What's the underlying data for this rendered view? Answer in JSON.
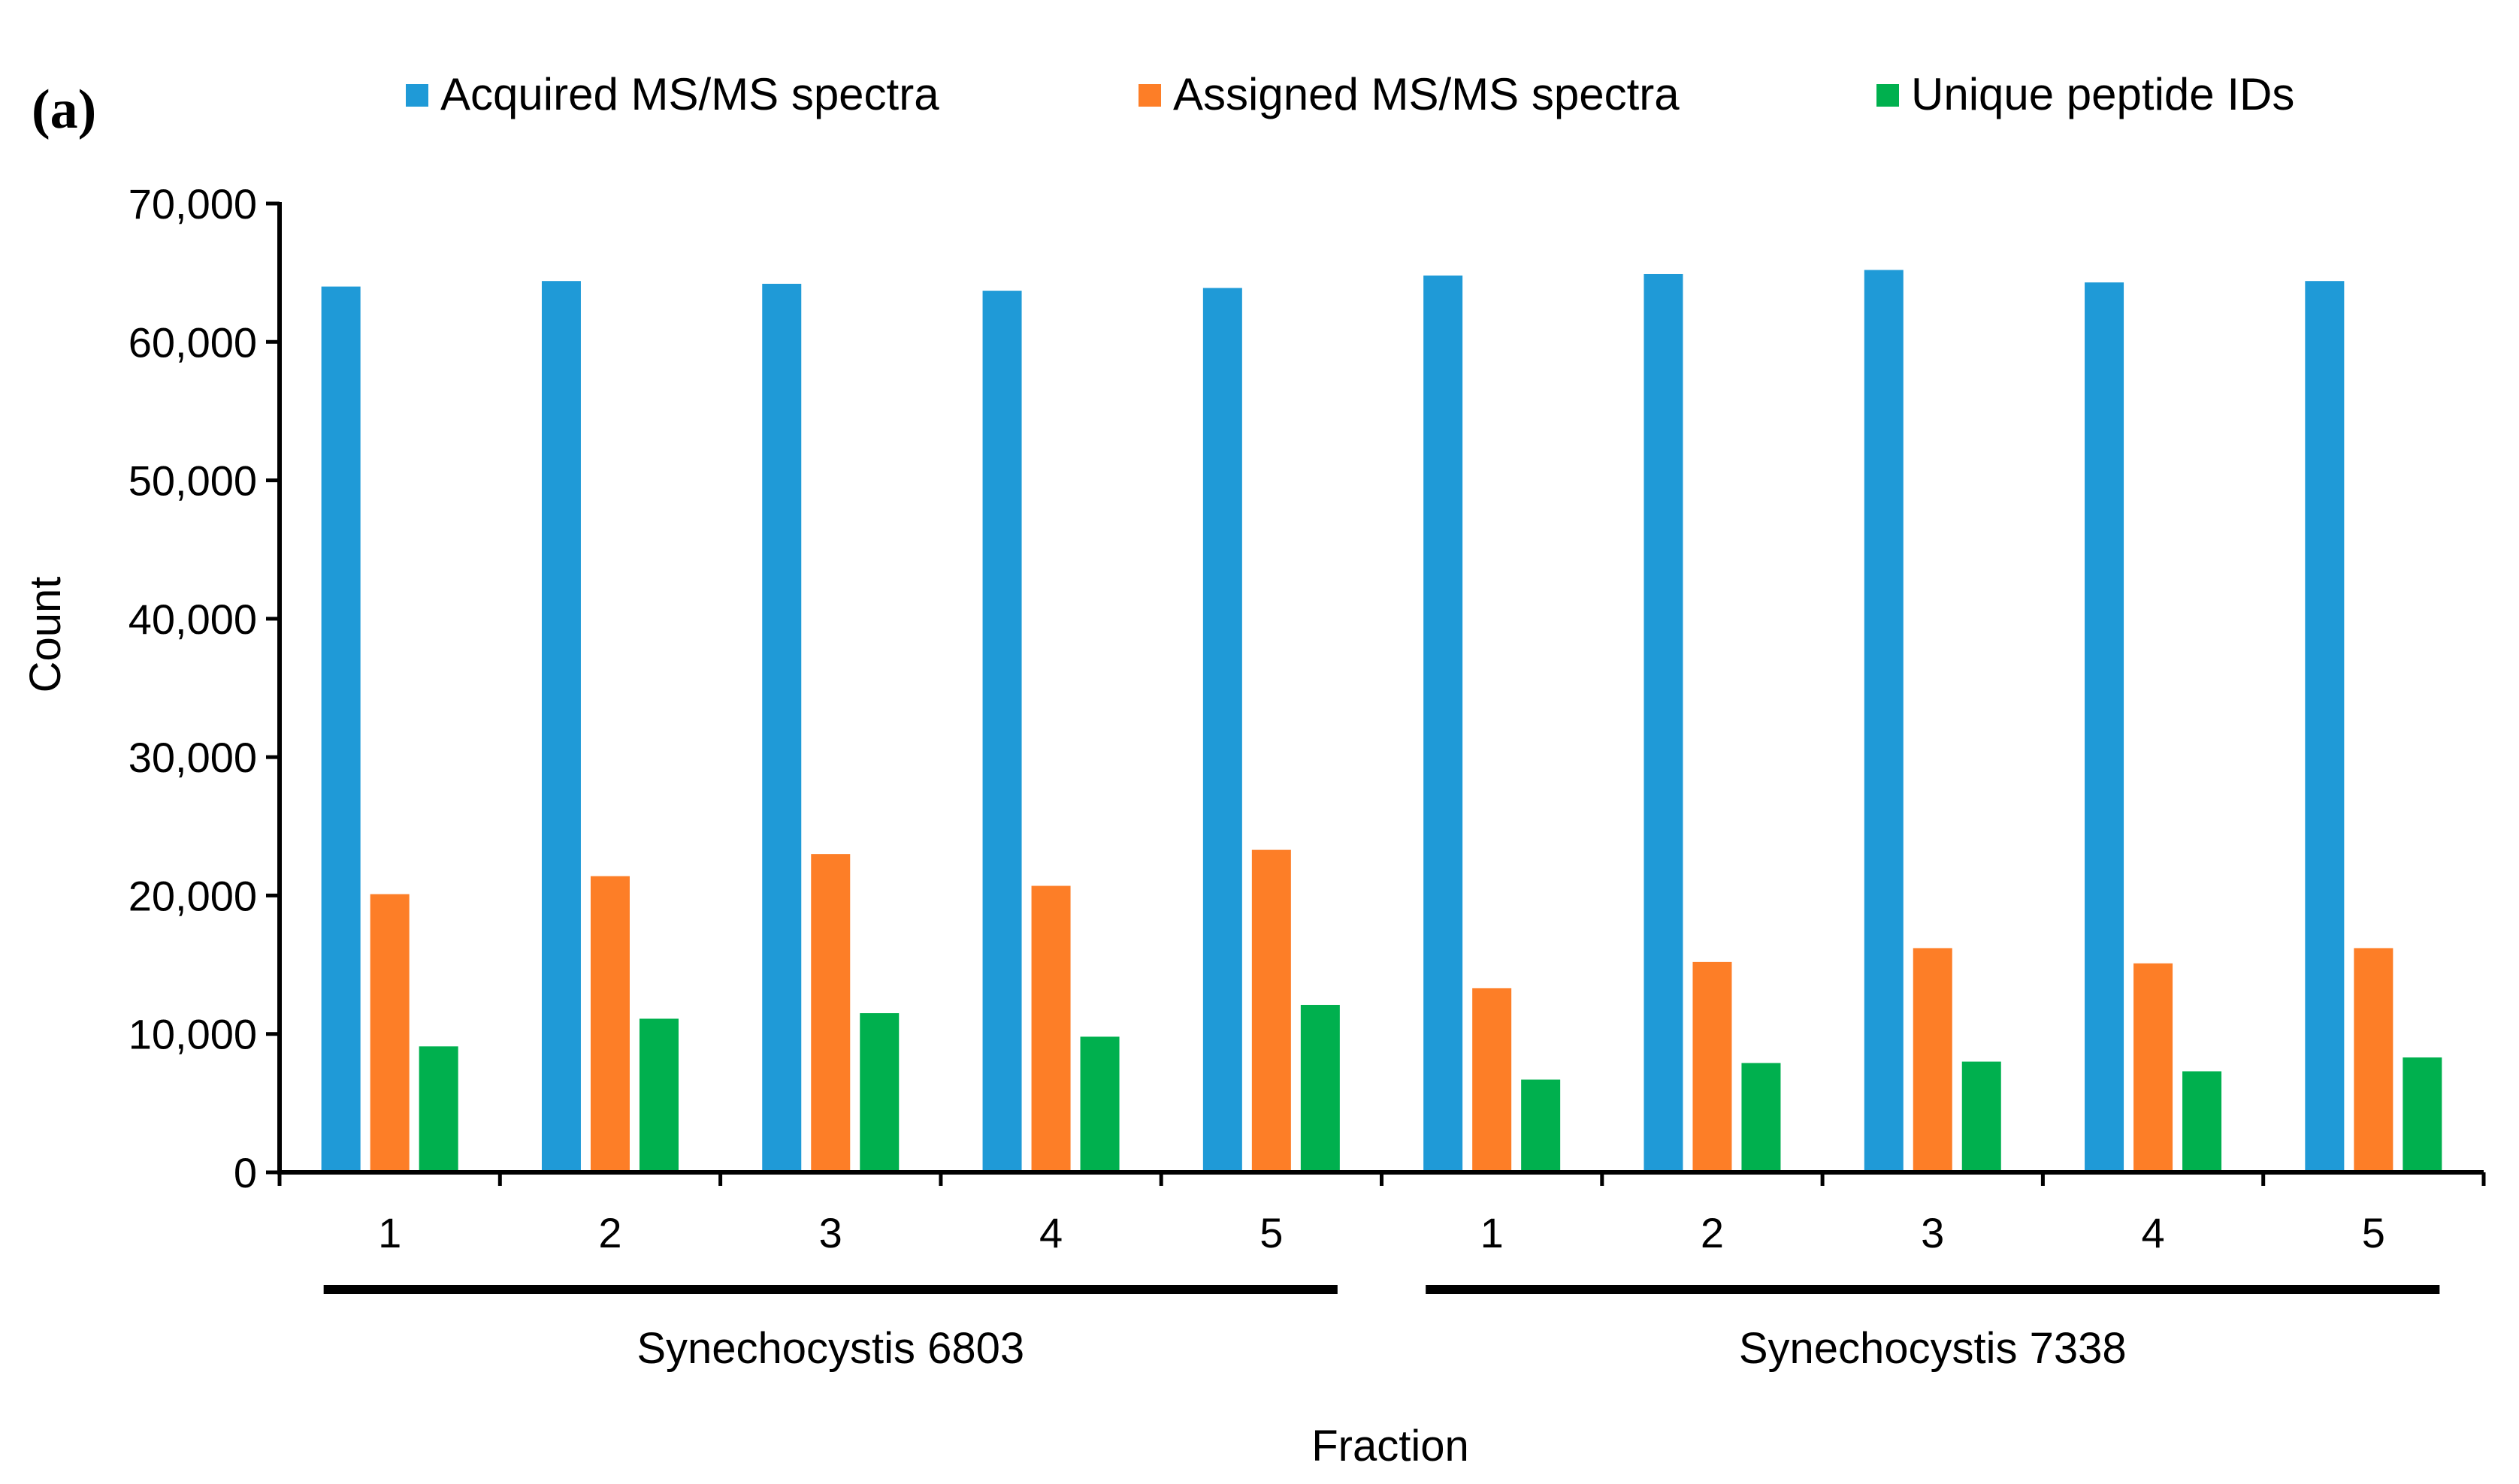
{
  "panel_label": "(a)",
  "chart_data": {
    "type": "bar",
    "title": "",
    "xlabel": "Fraction",
    "ylabel": "Count",
    "ylim": [
      0,
      70000
    ],
    "y_ticks": [
      0,
      10000,
      20000,
      30000,
      40000,
      50000,
      60000,
      70000
    ],
    "y_tick_labels": [
      "0",
      "10,000",
      "20,000",
      "30,000",
      "40,000",
      "50,000",
      "60,000",
      "70,000"
    ],
    "categories": [
      "1",
      "2",
      "3",
      "4",
      "5",
      "1",
      "2",
      "3",
      "4",
      "5"
    ],
    "groups": [
      {
        "label": "Synechocystis 6803",
        "category_range": [
          0,
          4
        ]
      },
      {
        "label": "Synechocystis 7338",
        "category_range": [
          5,
          9
        ]
      }
    ],
    "legend_position": "top",
    "series": [
      {
        "name": "Acquired MS/MS spectra",
        "color": "#1f9ad7",
        "values": [
          64000,
          64400,
          64200,
          63700,
          63900,
          64800,
          64900,
          65200,
          64300,
          64400
        ]
      },
      {
        "name": "Assigned MS/MS spectra",
        "color": "#fd7e27",
        "values": [
          20100,
          21400,
          23000,
          20700,
          23300,
          13300,
          15200,
          16200,
          15100,
          16200
        ]
      },
      {
        "name": "Unique peptide IDs",
        "color": "#00b04e",
        "values": [
          9100,
          11100,
          11500,
          9800,
          12100,
          6700,
          7900,
          8000,
          7300,
          8300
        ]
      }
    ]
  }
}
